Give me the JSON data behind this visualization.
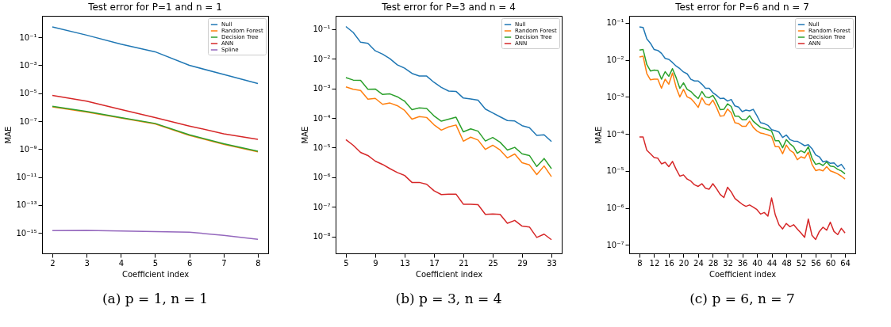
{
  "chart_data": [
    {
      "type": "line",
      "title": "Test error for P=1 and n = 1",
      "xlabel": "Coefficient index",
      "ylabel": "MAE",
      "log": "y",
      "legend": "top right",
      "annotations": [
        "(a) p = 1, n = 1"
      ],
      "x": [
        2,
        3,
        4,
        5,
        6,
        7,
        8
      ],
      "xlim": [
        1.7,
        8.3
      ],
      "xticks": [
        2,
        3,
        4,
        5,
        6,
        7,
        8
      ],
      "ylim": [
        3.4e-17,
        3.5
      ],
      "yticks": [
        {
          "value": 0.1,
          "label": "10⁻¹"
        },
        {
          "value": 0.001,
          "label": "10⁻³"
        },
        {
          "value": 1e-05,
          "label": "10⁻⁵"
        },
        {
          "value": 1e-07,
          "label": "10⁻⁷"
        },
        {
          "value": 1e-09,
          "label": "10⁻⁹"
        },
        {
          "value": 1e-11,
          "label": "10⁻¹¹"
        },
        {
          "value": 1e-13,
          "label": "10⁻¹³"
        },
        {
          "value": 1e-15,
          "label": "10⁻¹⁵"
        }
      ],
      "series": [
        {
          "name": "Null",
          "color": "#1f77b4",
          "values": [
            0.56,
            0.145,
            0.033,
            0.0093,
            0.001,
            0.00022,
            5e-05
          ]
        },
        {
          "name": "Random Forest",
          "color": "#ff7f0e",
          "values": [
            1.05e-06,
            4.5e-07,
            1.7e-07,
            6.3e-08,
            9.5e-09,
            2.2e-09,
            6.3e-10
          ]
        },
        {
          "name": "Decision Tree",
          "color": "#2ca02c",
          "values": [
            1.17e-06,
            4.9e-07,
            1.8e-07,
            6.9e-08,
            1.05e-08,
            2.4e-09,
            7e-10
          ]
        },
        {
          "name": "ANN",
          "color": "#d62728",
          "values": [
            7e-06,
            2.7e-06,
            6.8e-07,
            1.8e-07,
            4.5e-08,
            1.26e-08,
            5e-09
          ]
        },
        {
          "name": "Spline",
          "color": "#9467bd",
          "values": [
            1.45e-15,
            1.5e-15,
            1.35e-15,
            1.23e-15,
            1.13e-15,
            6.6e-16,
            3.5e-16
          ]
        }
      ]
    },
    {
      "type": "line",
      "title": "Test error for P=3 and n = 4",
      "xlabel": "Coefficient index",
      "ylabel": "MAE",
      "log": "y",
      "legend": "top right",
      "annotations": [
        "(b) p = 3, n = 4"
      ],
      "x": [
        5,
        6,
        7,
        8,
        9,
        10,
        11,
        12,
        13,
        14,
        15,
        16,
        17,
        18,
        19,
        20,
        21,
        22,
        23,
        24,
        25,
        26,
        27,
        28,
        29,
        30,
        31,
        32,
        33
      ],
      "xlim": [
        3.6,
        34.4
      ],
      "xticks": [
        5,
        9,
        13,
        17,
        21,
        25,
        29,
        33
      ],
      "ylim": [
        2.7e-09,
        0.28
      ],
      "yticks": [
        {
          "value": 0.1,
          "label": "10⁻¹"
        },
        {
          "value": 0.01,
          "label": "10⁻²"
        },
        {
          "value": 0.001,
          "label": "10⁻³"
        },
        {
          "value": 0.0001,
          "label": "10⁻⁴"
        },
        {
          "value": 1e-05,
          "label": "10⁻⁵"
        },
        {
          "value": 1e-06,
          "label": "10⁻⁶"
        },
        {
          "value": 1e-07,
          "label": "10⁻⁷"
        },
        {
          "value": 1e-08,
          "label": "10⁻⁸"
        }
      ],
      "series": [
        {
          "name": "Null",
          "color": "#1f77b4",
          "values": [
            0.122,
            0.077,
            0.036,
            0.033,
            0.0185,
            0.0143,
            0.01,
            0.0062,
            0.0048,
            0.0032,
            0.0026,
            0.0026,
            0.0016,
            0.00108,
            0.00081,
            0.00079,
            0.00047,
            0.00044,
            0.0004,
            0.0002,
            0.000148,
            0.00011,
            8.2e-05,
            7.9e-05,
            5.5e-05,
            4.7e-05,
            2.6e-05,
            2.7e-05,
            1.6e-05
          ]
        },
        {
          "name": "Random Forest",
          "color": "#ff7f0e",
          "values": [
            0.00112,
            0.00093,
            0.00085,
            0.00043,
            0.00046,
            0.00029,
            0.00032,
            0.00026,
            0.00018,
            9.1e-05,
            0.000111,
            0.000104,
            5.9e-05,
            3.9e-05,
            5e-05,
            5.8e-05,
            1.65e-05,
            2.25e-05,
            1.8e-05,
            8.7e-06,
            1.2e-05,
            8.3e-06,
            4.5e-06,
            6.1e-06,
            3.1e-06,
            2.6e-06,
            1.23e-06,
            2.4e-06,
            1.05e-06
          ]
        },
        {
          "name": "Decision Tree",
          "color": "#2ca02c",
          "values": [
            0.0023,
            0.0019,
            0.00185,
            0.00093,
            0.00095,
            0.00062,
            0.00065,
            0.00052,
            0.00037,
            0.00019,
            0.00022,
            0.00021,
            0.000118,
            7.8e-05,
            9.1e-05,
            0.000106,
            3.4e-05,
            4.3e-05,
            3.6e-05,
            1.67e-05,
            2.2e-05,
            1.52e-05,
            8.3e-06,
            1.02e-05,
            6.2e-06,
            5.4e-06,
            2.3e-06,
            4.3e-06,
            1.95e-06
          ]
        },
        {
          "name": "ANN",
          "color": "#d62728",
          "values": [
            1.85e-05,
            1.2e-05,
            6.9e-06,
            5.4e-06,
            3.5e-06,
            2.7e-06,
            1.95e-06,
            1.45e-06,
            1.15e-06,
            6.7e-07,
            6.7e-07,
            5.8e-07,
            3.5e-07,
            2.6e-07,
            2.7e-07,
            2.7e-07,
            1.23e-07,
            1.23e-07,
            1.19e-07,
            5.6e-08,
            5.8e-08,
            5.6e-08,
            2.8e-08,
            3.5e-08,
            2.25e-08,
            2.1e-08,
            9.3e-09,
            1.2e-08,
            7.8e-09
          ]
        }
      ]
    },
    {
      "type": "line",
      "title": "Test error for P=6 and n = 7",
      "xlabel": "Coefficient index",
      "ylabel": "MAE",
      "log": "y",
      "legend": "top right",
      "annotations": [
        "(c) p = 6, n = 7"
      ],
      "x": [
        8,
        9,
        10,
        11,
        12,
        13,
        14,
        15,
        16,
        17,
        18,
        19,
        20,
        21,
        22,
        23,
        24,
        25,
        26,
        27,
        28,
        29,
        30,
        31,
        32,
        33,
        34,
        35,
        36,
        37,
        38,
        39,
        40,
        41,
        42,
        43,
        44,
        45,
        46,
        47,
        48,
        49,
        50,
        51,
        52,
        53,
        54,
        55,
        56,
        57,
        58,
        59,
        60,
        61,
        62,
        63,
        64
      ],
      "xlim": [
        5.2,
        66.8
      ],
      "xticks": [
        8,
        12,
        16,
        20,
        24,
        28,
        32,
        36,
        40,
        44,
        48,
        52,
        56,
        60,
        64
      ],
      "ylim": [
        5.9e-08,
        0.155
      ],
      "yticks": [
        {
          "value": 0.1,
          "label": "10⁻¹"
        },
        {
          "value": 0.01,
          "label": "10⁻²"
        },
        {
          "value": 0.001,
          "label": "10⁻³"
        },
        {
          "value": 0.0001,
          "label": "10⁻⁴"
        },
        {
          "value": 1e-05,
          "label": "10⁻⁵"
        },
        {
          "value": 1e-06,
          "label": "10⁻⁶"
        },
        {
          "value": 1e-07,
          "label": "10⁻⁷"
        }
      ],
      "series": [
        {
          "name": "Null",
          "color": "#1f77b4",
          "values": [
            0.078,
            0.075,
            0.037,
            0.028,
            0.019,
            0.018,
            0.015,
            0.011,
            0.0103,
            0.0085,
            0.0068,
            0.0058,
            0.0047,
            0.0042,
            0.003,
            0.0027,
            0.0027,
            0.0022,
            0.0017,
            0.0017,
            0.0013,
            0.0011,
            0.0009,
            0.00092,
            0.00077,
            0.00085,
            0.00057,
            0.00053,
            0.0004,
            0.00044,
            0.00042,
            0.00046,
            0.00031,
            0.0002,
            0.00019,
            0.00017,
            0.00013,
            0.000122,
            0.000112,
            8e-05,
            9.3e-05,
            7e-05,
            6.4e-05,
            6.3e-05,
            5.5e-05,
            4.8e-05,
            5.1e-05,
            4e-05,
            2.7e-05,
            2.4e-05,
            1.75e-05,
            1.85e-05,
            1.6e-05,
            1.65e-05,
            1.3e-05,
            1.5e-05,
            1.1e-05
          ]
        },
        {
          "name": "Random Forest",
          "color": "#ff7f0e",
          "values": [
            0.012,
            0.0125,
            0.0043,
            0.0029,
            0.003,
            0.003,
            0.0017,
            0.003,
            0.0022,
            0.0044,
            0.0018,
            0.001,
            0.0016,
            0.001,
            0.0009,
            0.0007,
            0.00052,
            0.00095,
            0.00065,
            0.0006,
            0.00082,
            0.00052,
            0.0003,
            0.00031,
            0.00047,
            0.00037,
            0.0002,
            0.00019,
            0.00016,
            0.00016,
            0.00022,
            0.00015,
            0.00012,
            0.000105,
            0.0001,
            9.3e-05,
            8.5e-05,
            4.5e-05,
            4.5e-05,
            2.9e-05,
            5e-05,
            3.6e-05,
            3.1e-05,
            2e-05,
            2.4e-05,
            2.2e-05,
            3.2e-05,
            1.5e-05,
            1.02e-05,
            1.08e-05,
            1e-05,
            1.3e-05,
            1e-05,
            9.2e-06,
            8.3e-06,
            7.2e-06,
            6e-06
          ]
        },
        {
          "name": "Decision Tree",
          "color": "#2ca02c",
          "values": [
            0.0185,
            0.019,
            0.0075,
            0.005,
            0.0053,
            0.0052,
            0.003,
            0.0048,
            0.0036,
            0.0058,
            0.0033,
            0.0017,
            0.0024,
            0.0016,
            0.0014,
            0.0011,
            0.0009,
            0.0014,
            0.001,
            0.00095,
            0.0011,
            0.00075,
            0.00045,
            0.00046,
            0.00065,
            0.00055,
            0.0003,
            0.0003,
            0.00024,
            0.00024,
            0.00031,
            0.00022,
            0.00018,
            0.00015,
            0.00014,
            0.00013,
            0.00012,
            6.5e-05,
            6.5e-05,
            4.2e-05,
            7e-05,
            5.4e-05,
            4.5e-05,
            3e-05,
            3.5e-05,
            3.1e-05,
            4.5e-05,
            2.2e-05,
            1.5e-05,
            1.6e-05,
            1.4e-05,
            1.75e-05,
            1.35e-05,
            1.3e-05,
            1.1e-05,
            1e-05,
            8.3e-06
          ]
        },
        {
          "name": "ANN",
          "color": "#d62728",
          "values": [
            8.2e-05,
            8.2e-05,
            3.6e-05,
            2.9e-05,
            2.3e-05,
            2.2e-05,
            1.55e-05,
            1.7e-05,
            1.3e-05,
            1.8e-05,
            1.1e-05,
            7.2e-06,
            7.8e-06,
            6e-06,
            5.3e-06,
            4.2e-06,
            3.8e-06,
            4.5e-06,
            3.4e-06,
            3.2e-06,
            4.5e-06,
            3.3e-06,
            2.3e-06,
            1.9e-06,
            3.6e-06,
            2.7e-06,
            1.8e-06,
            1.5e-06,
            1.25e-06,
            1.1e-06,
            1.2e-06,
            1.05e-06,
            9e-07,
            6.8e-07,
            7.5e-07,
            6e-07,
            1.85e-06,
            6.5e-07,
            3.5e-07,
            2.7e-07,
            3.8e-07,
            3.1e-07,
            3.5e-07,
            2.7e-07,
            2.1e-07,
            1.6e-07,
            5e-07,
            1.8e-07,
            1.4e-07,
            2.3e-07,
            3e-07,
            2.5e-07,
            4.1e-07,
            2.3e-07,
            1.9e-07,
            2.8e-07,
            2.1e-07
          ]
        }
      ]
    }
  ]
}
